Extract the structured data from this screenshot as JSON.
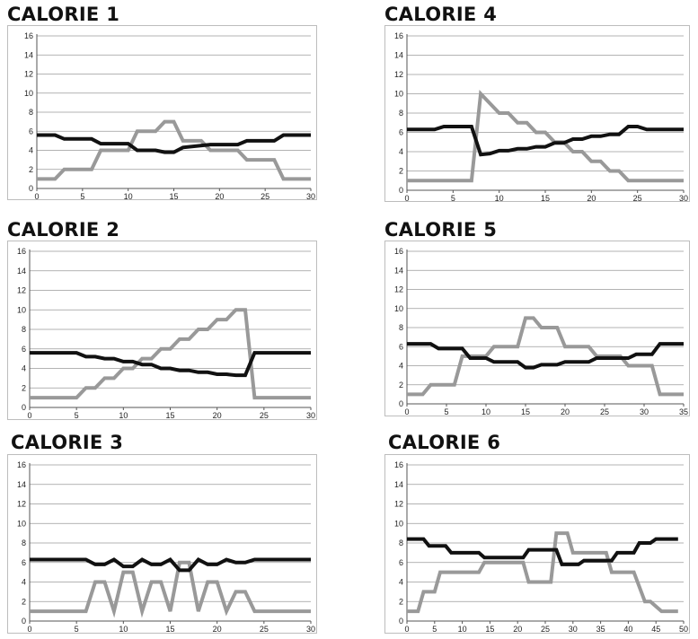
{
  "chart_data": [
    {
      "type": "line",
      "title": "CALORIE 1",
      "xlim": [
        0,
        30
      ],
      "ylim": [
        0,
        16
      ],
      "xticks": [
        0,
        5,
        10,
        15,
        20,
        25,
        30
      ],
      "yticks": [
        0,
        2,
        4,
        6,
        8,
        10,
        12,
        14,
        16
      ],
      "grid": "horizontal",
      "series": [
        {
          "color": "#111111",
          "x": [
            0,
            2,
            3,
            6,
            7,
            10,
            11,
            13,
            14,
            15,
            16,
            19,
            22,
            23,
            26,
            27,
            30
          ],
          "y": [
            5.6,
            5.6,
            5.2,
            5.2,
            4.7,
            4.7,
            4.0,
            4.0,
            3.8,
            3.8,
            4.3,
            4.6,
            4.6,
            5.0,
            5.0,
            5.6,
            5.6
          ]
        },
        {
          "color": "#999999",
          "x": [
            0,
            2,
            3,
            6,
            7,
            10,
            11,
            13,
            14,
            15,
            16,
            18,
            19,
            22,
            23,
            26,
            27,
            30
          ],
          "y": [
            1,
            1,
            2,
            2,
            4,
            4,
            6,
            6,
            7,
            7,
            5,
            5,
            4,
            4,
            3,
            3,
            1,
            1
          ]
        }
      ]
    },
    {
      "type": "line",
      "title": "CALORIE 2",
      "xlim": [
        0,
        30
      ],
      "ylim": [
        0,
        16
      ],
      "xticks": [
        0,
        5,
        10,
        15,
        20,
        25,
        30
      ],
      "yticks": [
        0,
        2,
        4,
        6,
        8,
        10,
        12,
        14,
        16
      ],
      "grid": "horizontal",
      "series": [
        {
          "color": "#111111",
          "x": [
            0,
            5,
            6,
            7,
            8,
            9,
            10,
            11,
            12,
            13,
            14,
            15,
            16,
            17,
            18,
            19,
            20,
            21,
            22,
            23,
            24,
            30
          ],
          "y": [
            5.6,
            5.6,
            5.2,
            5.2,
            5.0,
            5.0,
            4.7,
            4.7,
            4.4,
            4.4,
            4.0,
            4.0,
            3.8,
            3.8,
            3.6,
            3.6,
            3.4,
            3.4,
            3.3,
            3.3,
            5.6,
            5.6
          ]
        },
        {
          "color": "#999999",
          "x": [
            0,
            5,
            6,
            7,
            8,
            9,
            10,
            11,
            12,
            13,
            14,
            15,
            16,
            17,
            18,
            19,
            20,
            21,
            22,
            23,
            24,
            30
          ],
          "y": [
            1,
            1,
            2,
            2,
            3,
            3,
            4,
            4,
            5,
            5,
            6,
            6,
            7,
            7,
            8,
            8,
            9,
            9,
            10,
            10,
            1,
            1
          ]
        }
      ]
    },
    {
      "type": "line",
      "title": "CALORIE 3",
      "xlim": [
        0,
        30
      ],
      "ylim": [
        0,
        16
      ],
      "xticks": [
        0,
        5,
        10,
        15,
        20,
        25,
        30
      ],
      "yticks": [
        0,
        2,
        4,
        6,
        8,
        10,
        12,
        14,
        16
      ],
      "grid": "horizontal",
      "series": [
        {
          "color": "#111111",
          "x": [
            0,
            6,
            7,
            8,
            9,
            10,
            11,
            12,
            13,
            14,
            15,
            16,
            17,
            18,
            19,
            20,
            21,
            22,
            23,
            24,
            25,
            30
          ],
          "y": [
            6.3,
            6.3,
            5.8,
            5.8,
            6.3,
            5.6,
            5.6,
            6.3,
            5.8,
            5.8,
            6.3,
            5.2,
            5.2,
            6.3,
            5.8,
            5.8,
            6.3,
            6.0,
            6.0,
            6.3,
            6.3,
            6.3
          ]
        },
        {
          "color": "#999999",
          "x": [
            0,
            6,
            7,
            8,
            9,
            10,
            11,
            12,
            13,
            14,
            15,
            16,
            17,
            18,
            19,
            20,
            21,
            22,
            23,
            24,
            25,
            30
          ],
          "y": [
            1,
            1,
            4,
            4,
            1,
            5,
            5,
            1,
            4,
            4,
            1,
            6,
            6,
            1,
            4,
            4,
            1,
            3,
            3,
            1,
            1,
            1
          ]
        }
      ]
    },
    {
      "type": "line",
      "title": "CALORIE 4",
      "xlim": [
        0,
        30
      ],
      "ylim": [
        0,
        16
      ],
      "xticks": [
        0,
        5,
        10,
        15,
        20,
        25,
        30
      ],
      "yticks": [
        0,
        2,
        4,
        6,
        8,
        10,
        12,
        14,
        16
      ],
      "grid": "horizontal",
      "series": [
        {
          "color": "#111111",
          "x": [
            0,
            3,
            4,
            7,
            8,
            9,
            10,
            11,
            12,
            13,
            14,
            15,
            16,
            17,
            18,
            19,
            20,
            21,
            22,
            23,
            24,
            25,
            26,
            30
          ],
          "y": [
            6.3,
            6.3,
            6.6,
            6.6,
            3.7,
            3.8,
            4.1,
            4.1,
            4.3,
            4.3,
            4.5,
            4.5,
            4.9,
            4.9,
            5.3,
            5.3,
            5.6,
            5.6,
            5.8,
            5.8,
            6.6,
            6.6,
            6.3,
            6.3
          ]
        },
        {
          "color": "#999999",
          "x": [
            0,
            7,
            8,
            9,
            10,
            11,
            12,
            13,
            14,
            15,
            16,
            17,
            18,
            19,
            20,
            21,
            22,
            23,
            24,
            30
          ],
          "y": [
            1,
            1,
            10,
            9,
            8,
            8,
            7,
            7,
            6,
            6,
            5,
            5,
            4,
            4,
            3,
            3,
            2,
            2,
            1,
            1
          ]
        }
      ]
    },
    {
      "type": "line",
      "title": "CALORIE 5",
      "xlim": [
        0,
        35
      ],
      "ylim": [
        0,
        16
      ],
      "xticks": [
        0,
        5,
        10,
        15,
        20,
        25,
        30,
        35
      ],
      "yticks": [
        0,
        2,
        4,
        6,
        8,
        10,
        12,
        14,
        16
      ],
      "grid": "horizontal",
      "series": [
        {
          "color": "#111111",
          "x": [
            0,
            3,
            4,
            7,
            8,
            10,
            11,
            14,
            15,
            16,
            17,
            19,
            20,
            23,
            24,
            27,
            28,
            29,
            30,
            31,
            32,
            35
          ],
          "y": [
            6.3,
            6.3,
            5.8,
            5.8,
            4.8,
            4.8,
            4.4,
            4.4,
            3.8,
            3.8,
            4.1,
            4.1,
            4.4,
            4.4,
            4.8,
            4.8,
            4.8,
            5.2,
            5.2,
            5.2,
            6.3,
            6.3
          ]
        },
        {
          "color": "#999999",
          "x": [
            0,
            2,
            3,
            6,
            7,
            10,
            11,
            14,
            15,
            16,
            17,
            19,
            20,
            23,
            24,
            27,
            28,
            30,
            31,
            32,
            35
          ],
          "y": [
            1,
            1,
            2,
            2,
            5,
            5,
            6,
            6,
            9,
            9,
            8,
            8,
            6,
            6,
            5,
            5,
            4,
            4,
            4,
            1,
            1
          ]
        }
      ]
    },
    {
      "type": "line",
      "title": "CALORIE 6",
      "xlim": [
        0,
        50
      ],
      "ylim": [
        0,
        16
      ],
      "xticks": [
        0,
        5,
        10,
        15,
        20,
        25,
        30,
        35,
        40,
        45,
        50
      ],
      "yticks": [
        0,
        2,
        4,
        6,
        8,
        10,
        12,
        14,
        16
      ],
      "grid": "horizontal",
      "series": [
        {
          "color": "#111111",
          "x": [
            0,
            3,
            4,
            7,
            8,
            13,
            14,
            21,
            22,
            27,
            28,
            31,
            32,
            37,
            38,
            41,
            42,
            44,
            45,
            49
          ],
          "y": [
            8.4,
            8.4,
            7.7,
            7.7,
            7.0,
            7.0,
            6.5,
            6.5,
            7.3,
            7.3,
            5.8,
            5.8,
            6.2,
            6.2,
            7.0,
            7.0,
            8.0,
            8.0,
            8.4,
            8.4
          ]
        },
        {
          "color": "#999999",
          "x": [
            0,
            2,
            3,
            5,
            6,
            9,
            10,
            13,
            14,
            21,
            22,
            26,
            27,
            29,
            30,
            36,
            37,
            40,
            41,
            43,
            44,
            46,
            47,
            49
          ],
          "y": [
            1,
            1,
            3,
            3,
            5,
            5,
            5,
            5,
            6,
            6,
            4,
            4,
            9,
            9,
            7,
            7,
            5,
            5,
            5,
            2,
            2,
            1,
            1,
            1
          ]
        }
      ]
    }
  ]
}
